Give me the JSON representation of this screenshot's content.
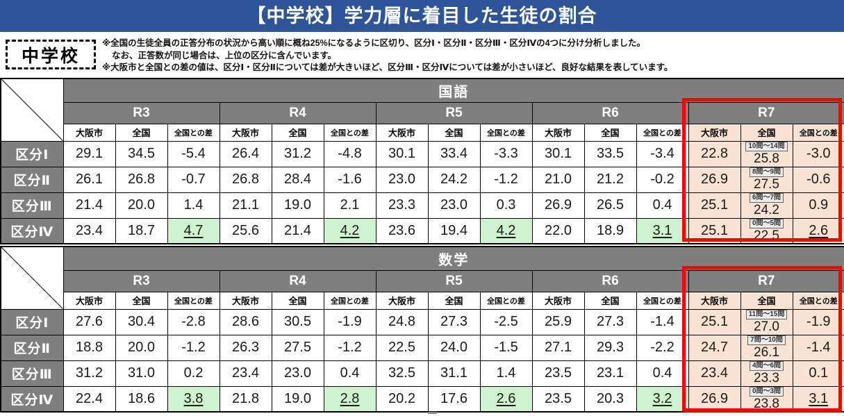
{
  "title": "【中学校】学力層に着目した生徒の割合",
  "badge": {
    "label": "中学校"
  },
  "notes": [
    "※全国の生徒全員の正答分布の状況から高い順に概ね25%になるように区切り、区分Ⅰ・区分Ⅱ・区分Ⅲ・区分Ⅳの4つに分け分析しました。",
    "なお、正答数が同じ場合は、上位の区分に含んでいます。",
    "※大阪市と全国との差の値は、区分Ⅰ・区分Ⅱについては差が大きいほど、区分Ⅲ・区分Ⅳについては差が小さいほど、良好な結果を表しています。"
  ],
  "years": [
    "R3",
    "R4",
    "R5",
    "R6",
    "R7"
  ],
  "sub_headers": [
    "大阪市",
    "全国",
    "全国との差"
  ],
  "colors": {
    "title_bg": "#2E5597",
    "header_gray": "#7F7F7F",
    "r7_peach": "#FBE3D4",
    "good_green": "#CFF3CF",
    "highlight_red": "#FE0000"
  },
  "tables": [
    {
      "subject": "国語",
      "rows": [
        {
          "label": "区分Ⅰ",
          "r7_range": "10問～14問",
          "values": [
            [
              "29.1",
              "34.5",
              "-5.4"
            ],
            [
              "26.4",
              "31.2",
              "-4.8"
            ],
            [
              "30.1",
              "33.4",
              "-3.3"
            ],
            [
              "30.1",
              "33.5",
              "-3.4"
            ],
            [
              "22.8",
              "25.8",
              "-3.0"
            ]
          ]
        },
        {
          "label": "区分Ⅱ",
          "r7_range": "8問～9問",
          "values": [
            [
              "26.1",
              "26.8",
              "-0.7"
            ],
            [
              "26.8",
              "28.4",
              "-1.6"
            ],
            [
              "23.0",
              "24.2",
              "-1.2"
            ],
            [
              "21.0",
              "21.2",
              "-0.2"
            ],
            [
              "26.9",
              "27.5",
              "-0.6"
            ]
          ]
        },
        {
          "label": "区分Ⅲ",
          "r7_range": "6問～7問",
          "values": [
            [
              "21.4",
              "20.0",
              "1.4"
            ],
            [
              "21.1",
              "19.0",
              "2.1"
            ],
            [
              "23.3",
              "23.0",
              "0.3"
            ],
            [
              "26.9",
              "26.5",
              "0.4"
            ],
            [
              "25.1",
              "24.2",
              "0.9"
            ]
          ]
        },
        {
          "label": "区分Ⅳ",
          "r7_range": "0問～5問",
          "values": [
            [
              "23.4",
              "18.7",
              "4.7"
            ],
            [
              "25.6",
              "21.4",
              "4.2"
            ],
            [
              "23.6",
              "19.4",
              "4.2"
            ],
            [
              "22.0",
              "18.9",
              "3.1"
            ],
            [
              "25.1",
              "22.5",
              "2.6"
            ]
          ]
        }
      ]
    },
    {
      "subject": "数学",
      "rows": [
        {
          "label": "区分Ⅰ",
          "r7_range": "11問～15問",
          "values": [
            [
              "27.6",
              "30.4",
              "-2.8"
            ],
            [
              "28.6",
              "30.5",
              "-1.9"
            ],
            [
              "24.8",
              "27.3",
              "-2.5"
            ],
            [
              "25.9",
              "27.3",
              "-1.4"
            ],
            [
              "25.1",
              "27.0",
              "-1.9"
            ]
          ]
        },
        {
          "label": "区分Ⅱ",
          "r7_range": "7問～10問",
          "values": [
            [
              "18.8",
              "20.0",
              "-1.2"
            ],
            [
              "26.3",
              "27.5",
              "-1.2"
            ],
            [
              "22.5",
              "24.0",
              "-1.5"
            ],
            [
              "27.1",
              "29.3",
              "-2.2"
            ],
            [
              "24.7",
              "26.1",
              "-1.4"
            ]
          ]
        },
        {
          "label": "区分Ⅲ",
          "r7_range": "4問～6問",
          "values": [
            [
              "31.2",
              "31.0",
              "0.2"
            ],
            [
              "23.4",
              "23.0",
              "0.4"
            ],
            [
              "32.5",
              "31.1",
              "1.4"
            ],
            [
              "23.5",
              "23.1",
              "0.4"
            ],
            [
              "23.4",
              "23.3",
              "0.1"
            ]
          ]
        },
        {
          "label": "区分Ⅳ",
          "r7_range": "0問～3問",
          "values": [
            [
              "22.4",
              "18.6",
              "3.8"
            ],
            [
              "21.8",
              "19.0",
              "2.8"
            ],
            [
              "20.2",
              "17.6",
              "2.6"
            ],
            [
              "23.5",
              "20.3",
              "3.2"
            ],
            [
              "26.9",
              "23.8",
              "3.1"
            ]
          ]
        }
      ]
    }
  ]
}
